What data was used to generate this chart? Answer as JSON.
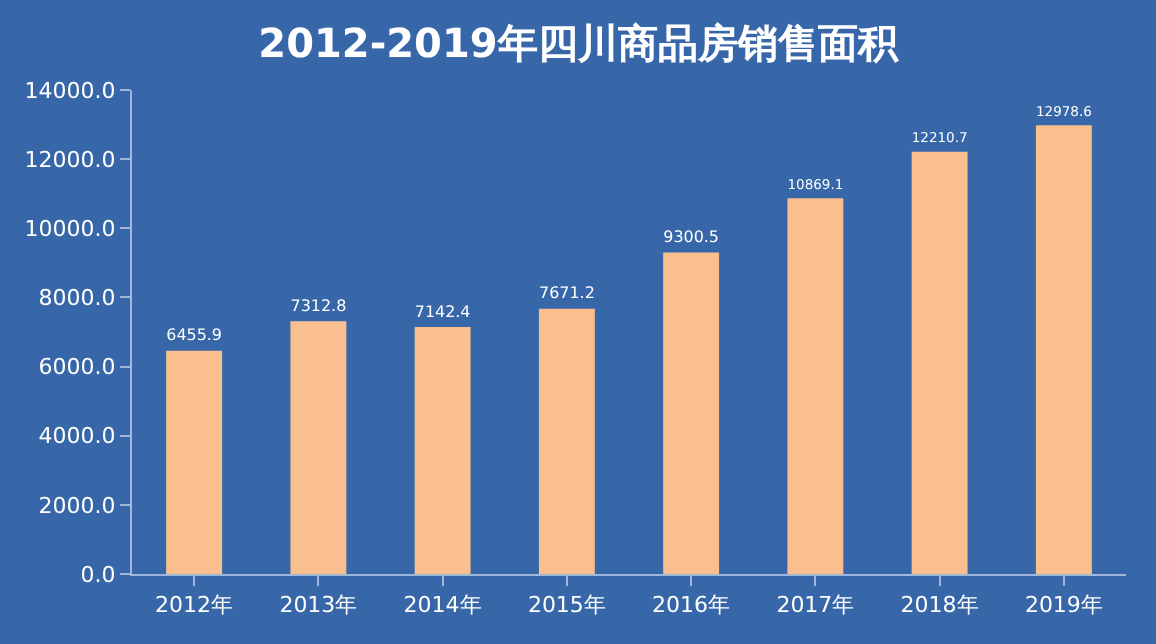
{
  "chart_data": {
    "type": "bar",
    "title": "2012-2019年四川商品房销售面积",
    "categories": [
      "2012年",
      "2013年",
      "2014年",
      "2015年",
      "2016年",
      "2017年",
      "2018年",
      "2019年"
    ],
    "values": [
      6455.9,
      7312.8,
      7142.4,
      7671.2,
      9300.5,
      10869.1,
      12210.7,
      12978.6
    ],
    "color": "#f9bf8f",
    "data_labels": true,
    "grid": false,
    "legend": false,
    "ylim": [
      0,
      14000
    ],
    "yticks": [
      {
        "value": 0,
        "label": "0.0"
      },
      {
        "value": 2000,
        "label": "2000.0"
      },
      {
        "value": 4000,
        "label": "4000.0"
      },
      {
        "value": 6000,
        "label": "6000.0"
      },
      {
        "value": 8000,
        "label": "8000.0"
      },
      {
        "value": 10000,
        "label": "10000.0"
      },
      {
        "value": 12000,
        "label": "12000.0"
      },
      {
        "value": 14000,
        "label": "14000.0"
      }
    ]
  }
}
